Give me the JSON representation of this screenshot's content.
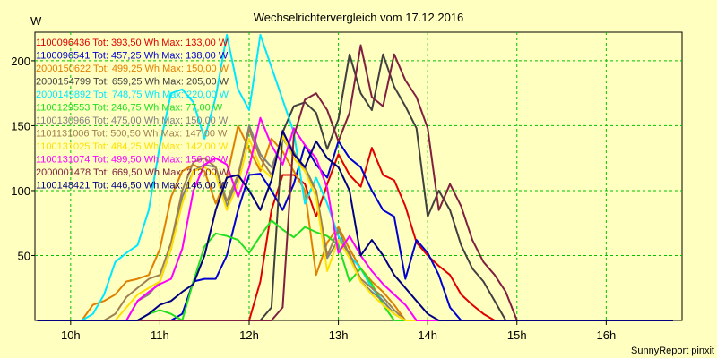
{
  "chart_data": {
    "type": "line",
    "title": "Wechselrichtervergleich vom 17.12.2016",
    "ylabel": "W",
    "credit": "SunnyReport pinxit",
    "x_tick_labels": [
      "10h",
      "11h",
      "12h",
      "13h",
      "14h",
      "15h",
      "16h"
    ],
    "x_ticks": [
      10,
      11,
      12,
      13,
      14,
      15,
      16
    ],
    "xlim": [
      9.6,
      16.85
    ],
    "y_ticks": [
      50,
      100,
      150,
      200
    ],
    "y_tick_labels": [
      "50",
      "100",
      "150",
      "200"
    ],
    "ylim": [
      0,
      222
    ],
    "grid": true,
    "legend_position": "top-left",
    "x": [
      9.625,
      9.75,
      9.875,
      10.0,
      10.125,
      10.25,
      10.375,
      10.5,
      10.625,
      10.75,
      10.875,
      11.0,
      11.125,
      11.25,
      11.375,
      11.5,
      11.625,
      11.75,
      11.875,
      12.0,
      12.125,
      12.25,
      12.375,
      12.5,
      12.625,
      12.75,
      12.875,
      13.0,
      13.125,
      13.25,
      13.375,
      13.5,
      13.625,
      13.75,
      13.875,
      14.0,
      14.125,
      14.25,
      14.375,
      14.5,
      14.625,
      14.75,
      14.875,
      15.0,
      15.125,
      15.25,
      15.375,
      15.5,
      15.625,
      15.75,
      15.875,
      16.0,
      16.125,
      16.25,
      16.375,
      16.5,
      16.625,
      16.75
    ],
    "series": [
      {
        "name": "1100096436",
        "legend": "1100096436 Tot: 393,50 Wh Max: 133,00 W",
        "color": "#e00000",
        "values": [
          0,
          0,
          0,
          0,
          0,
          0,
          0,
          0,
          0,
          0,
          0,
          0,
          0,
          0,
          0,
          0,
          0,
          0,
          0,
          0,
          30,
          85,
          112,
          112,
          105,
          80,
          105,
          128,
          112,
          103,
          133,
          112,
          108,
          88,
          60,
          50,
          42,
          35,
          20,
          12,
          5,
          0,
          0,
          0,
          0,
          0,
          0,
          0,
          0,
          0,
          0,
          0,
          0,
          0,
          0,
          0,
          0,
          0
        ]
      },
      {
        "name": "1100096541",
        "legend": "1100096541 Tot: 457,25 Wh Max: 138,00 W",
        "color": "#0000d0",
        "values": [
          0,
          0,
          0,
          0,
          0,
          0,
          0,
          0,
          0,
          0,
          0,
          0,
          0,
          5,
          30,
          32,
          32,
          50,
          85,
          112,
          113,
          100,
          85,
          105,
          135,
          120,
          110,
          138,
          125,
          118,
          100,
          85,
          80,
          32,
          62,
          52,
          35,
          10,
          0,
          0,
          0,
          0,
          0,
          0,
          0,
          0,
          0,
          0,
          0,
          0,
          0,
          0,
          0,
          0,
          0,
          0,
          0,
          0
        ]
      },
      {
        "name": "2000150622",
        "legend": "2000150622 Tot: 499,25 Wh Max: 150,00 W",
        "color": "#e08000",
        "values": [
          0,
          0,
          0,
          0,
          0,
          12,
          15,
          20,
          30,
          32,
          35,
          55,
          95,
          115,
          120,
          115,
          90,
          110,
          150,
          132,
          115,
          140,
          130,
          115,
          100,
          35,
          60,
          72,
          55,
          40,
          30,
          22,
          12,
          0,
          0,
          0,
          0,
          0,
          0,
          0,
          0,
          0,
          0,
          0,
          0,
          0,
          0,
          0,
          0,
          0,
          0,
          0,
          0,
          0,
          0,
          0,
          0,
          0
        ]
      },
      {
        "name": "2000154799",
        "legend": "2000154799 Tot: 659,25 Wh Max: 205,00 W",
        "color": "#404040",
        "values": [
          0,
          0,
          0,
          0,
          0,
          0,
          0,
          0,
          0,
          0,
          0,
          0,
          0,
          0,
          0,
          0,
          0,
          0,
          0,
          0,
          0,
          10,
          145,
          165,
          168,
          160,
          132,
          155,
          205,
          175,
          162,
          205,
          180,
          165,
          148,
          80,
          100,
          85,
          58,
          40,
          30,
          15,
          0,
          0,
          0,
          0,
          0,
          0,
          0,
          0,
          0,
          0,
          0,
          0,
          0,
          0,
          0,
          0
        ]
      },
      {
        "name": "2000149892",
        "legend": "2000149892 Tot: 748,75 Wh Max: 220,00 W",
        "color": "#00e8ff",
        "values": [
          0,
          0,
          0,
          0,
          0,
          5,
          20,
          45,
          52,
          58,
          85,
          135,
          175,
          178,
          168,
          140,
          172,
          220,
          178,
          162,
          220,
          195,
          170,
          145,
          90,
          110,
          90,
          65,
          50,
          40,
          25,
          15,
          5,
          0,
          0,
          0,
          0,
          0,
          0,
          0,
          0,
          0,
          0,
          0,
          0,
          0,
          0,
          0,
          0,
          0,
          0,
          0,
          0,
          0,
          0,
          0,
          0,
          0
        ]
      },
      {
        "name": "1100129553",
        "legend": "1100129553 Tot: 246,75 Wh Max: 77,00 W",
        "color": "#20e020",
        "values": [
          0,
          0,
          0,
          0,
          0,
          0,
          0,
          0,
          0,
          0,
          5,
          8,
          5,
          0,
          30,
          57,
          67,
          65,
          62,
          52,
          65,
          77,
          70,
          64,
          72,
          68,
          65,
          58,
          30,
          40,
          28,
          12,
          0,
          0,
          0,
          0,
          0,
          0,
          0,
          0,
          0,
          0,
          0,
          0,
          0,
          0,
          0,
          0,
          0,
          0,
          0,
          0,
          0,
          0,
          0,
          0,
          0,
          0
        ]
      },
      {
        "name": "1100130966",
        "legend": "1100130966 Tot: 475,00 Wh Max: 150,00 W",
        "color": "#808080",
        "values": [
          0,
          0,
          0,
          0,
          0,
          0,
          0,
          0,
          0,
          15,
          20,
          30,
          55,
          95,
          115,
          120,
          118,
          88,
          110,
          150,
          128,
          118,
          140,
          128,
          118,
          100,
          48,
          62,
          52,
          30,
          22,
          15,
          5,
          0,
          0,
          0,
          0,
          0,
          0,
          0,
          0,
          0,
          0,
          0,
          0,
          0,
          0,
          0,
          0,
          0,
          0,
          0,
          0,
          0,
          0,
          0,
          0,
          0
        ]
      },
      {
        "name": "1101131006",
        "legend": "1101131006 Tot: 500,50 Wh Max: 147,00 W",
        "color": "#a08050",
        "values": [
          0,
          0,
          0,
          0,
          0,
          0,
          0,
          5,
          18,
          25,
          32,
          35,
          60,
          100,
          122,
          125,
          118,
          92,
          112,
          147,
          125,
          112,
          145,
          130,
          115,
          100,
          50,
          70,
          50,
          32,
          25,
          18,
          8,
          0,
          0,
          0,
          0,
          0,
          0,
          0,
          0,
          0,
          0,
          0,
          0,
          0,
          0,
          0,
          0,
          0,
          0,
          0,
          0,
          0,
          0,
          0,
          0,
          0
        ]
      },
      {
        "name": "1100131025",
        "legend": "1100131025 Tot: 484,25 Wh Max: 142,00 W",
        "color": "#ffe000",
        "values": [
          0,
          0,
          0,
          0,
          0,
          0,
          0,
          0,
          10,
          20,
          25,
          30,
          55,
          90,
          115,
          118,
          112,
          85,
          105,
          140,
          118,
          110,
          142,
          125,
          115,
          95,
          38,
          62,
          48,
          30,
          20,
          12,
          5,
          0,
          0,
          0,
          0,
          0,
          0,
          0,
          0,
          0,
          0,
          0,
          0,
          0,
          0,
          0,
          0,
          0,
          0,
          0,
          0,
          0,
          0,
          0,
          0,
          0
        ]
      },
      {
        "name": "1100131074",
        "legend": "1100131074 Tot: 499,50 Wh Max: 156,00 W",
        "color": "#ff00ff",
        "values": [
          0,
          0,
          0,
          0,
          0,
          0,
          0,
          0,
          0,
          15,
          22,
          28,
          32,
          55,
          100,
          120,
          125,
          120,
          95,
          118,
          156,
          135,
          120,
          148,
          135,
          125,
          102,
          52,
          65,
          50,
          38,
          28,
          20,
          12,
          0,
          0,
          0,
          0,
          0,
          0,
          0,
          0,
          0,
          0,
          0,
          0,
          0,
          0,
          0,
          0,
          0,
          0,
          0,
          0,
          0,
          0,
          0,
          0
        ]
      },
      {
        "name": "2000001478",
        "legend": "2000001478 Tot: 669,50 Wh Max: 212,00 W",
        "color": "#802040",
        "values": [
          0,
          0,
          0,
          0,
          0,
          0,
          0,
          0,
          0,
          0,
          0,
          0,
          0,
          0,
          0,
          0,
          0,
          0,
          0,
          0,
          0,
          0,
          10,
          142,
          170,
          175,
          162,
          138,
          160,
          212,
          172,
          165,
          205,
          185,
          172,
          148,
          85,
          105,
          88,
          62,
          45,
          35,
          22,
          0,
          0,
          0,
          0,
          0,
          0,
          0,
          0,
          0,
          0,
          0,
          0,
          0,
          0,
          0
        ]
      },
      {
        "name": "1100148421",
        "legend": "1100148421 Tot: 446,50 Wh Max: 146,00 W",
        "color": "#000080",
        "values": [
          0,
          0,
          0,
          0,
          0,
          0,
          0,
          0,
          0,
          0,
          5,
          12,
          15,
          22,
          28,
          50,
          85,
          110,
          112,
          100,
          85,
          108,
          146,
          128,
          118,
          138,
          125,
          118,
          100,
          50,
          62,
          50,
          35,
          25,
          15,
          5,
          0,
          0,
          0,
          0,
          0,
          0,
          0,
          0,
          0,
          0,
          0,
          0,
          0,
          0,
          0,
          0,
          0,
          0,
          0,
          0,
          0,
          0
        ]
      }
    ]
  }
}
